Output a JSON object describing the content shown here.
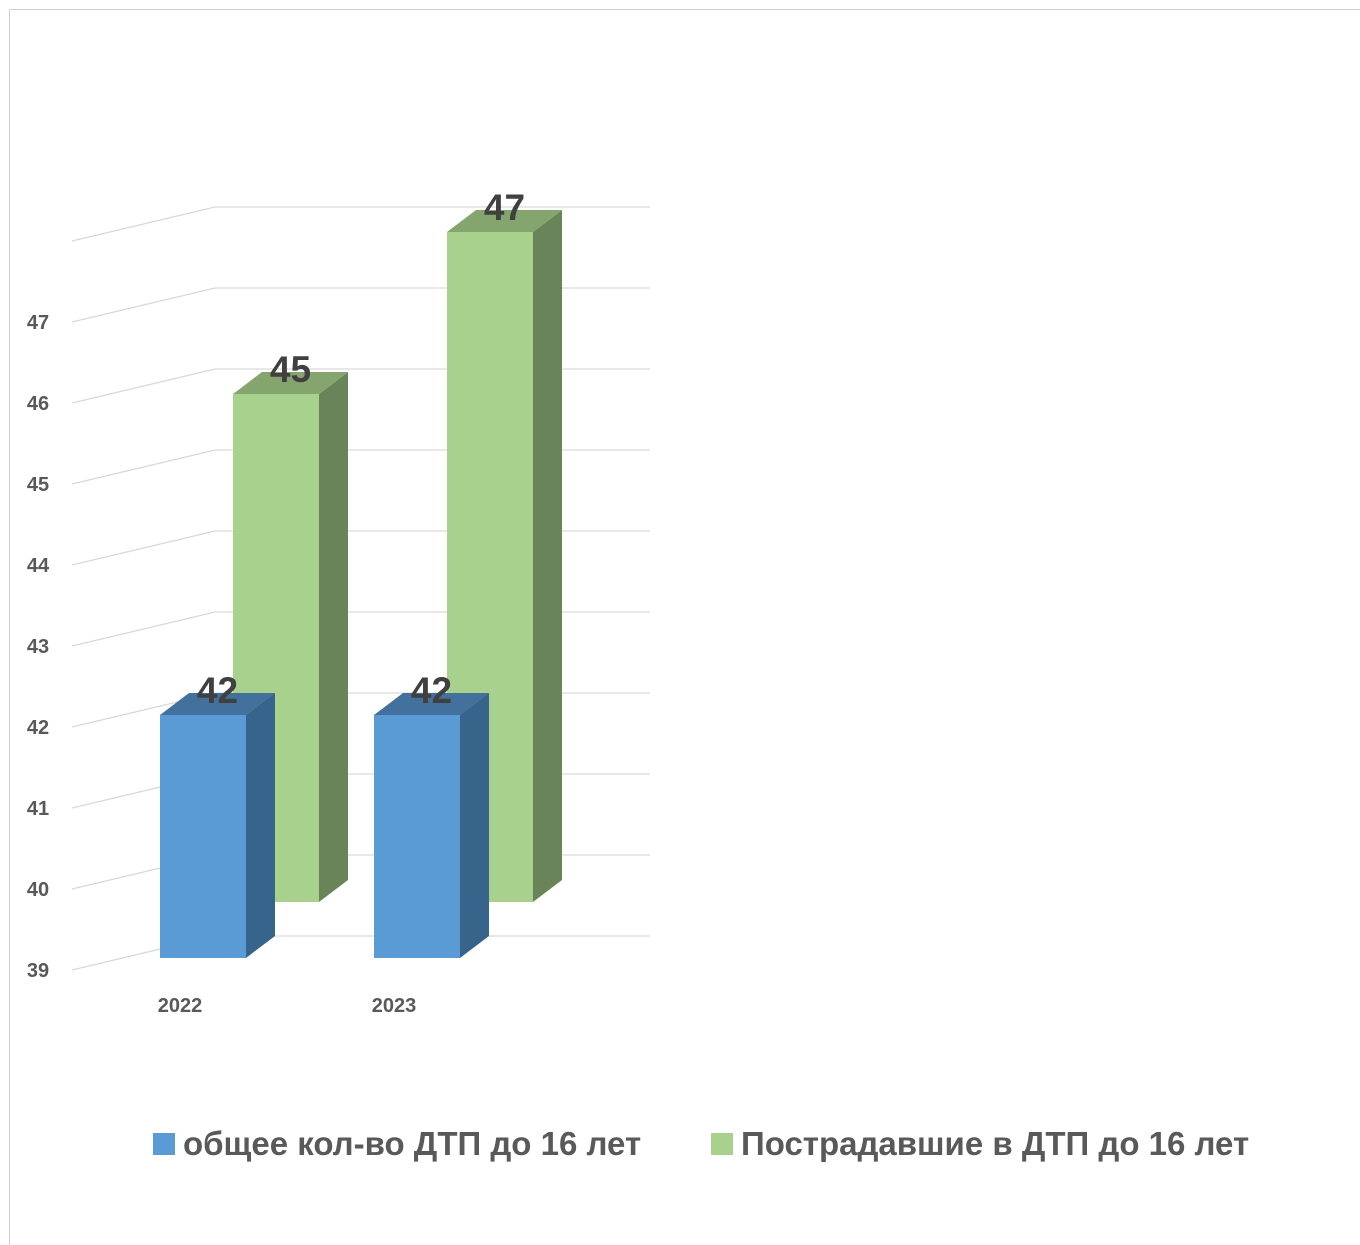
{
  "chart_data": {
    "type": "bar",
    "categories": [
      "2022",
      "2023"
    ],
    "series": [
      {
        "name": "общее кол-во ДТП до 16 лет",
        "values": [
          42,
          42
        ],
        "color": "#5b9bd5",
        "side_color": "#36648b",
        "top_color": "#41719c"
      },
      {
        "name": "Пострадавшие в ДТП до 16 лет",
        "values": [
          45,
          47
        ],
        "color": "#a9d18e",
        "side_color": "#6a8459",
        "top_color": "#84a56e"
      }
    ],
    "y_ticks": [
      "39",
      "40",
      "41",
      "42",
      "43",
      "44",
      "45",
      "46",
      "47"
    ],
    "ylim": [
      39,
      47
    ],
    "grid": true,
    "legend_position": "bottom",
    "data_labels": true
  }
}
